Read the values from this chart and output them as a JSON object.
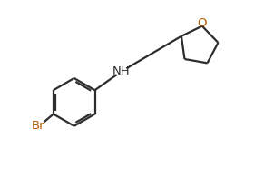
{
  "background_color": "#ffffff",
  "line_color": "#2d2d2d",
  "bond_width": 1.6,
  "label_NH": "NH",
  "label_Br": "Br",
  "label_O": "O",
  "NH_color": "#2d2d2d",
  "Br_color": "#b35900",
  "O_color": "#b35900",
  "figsize": [
    2.91,
    1.97
  ],
  "dpi": 100
}
